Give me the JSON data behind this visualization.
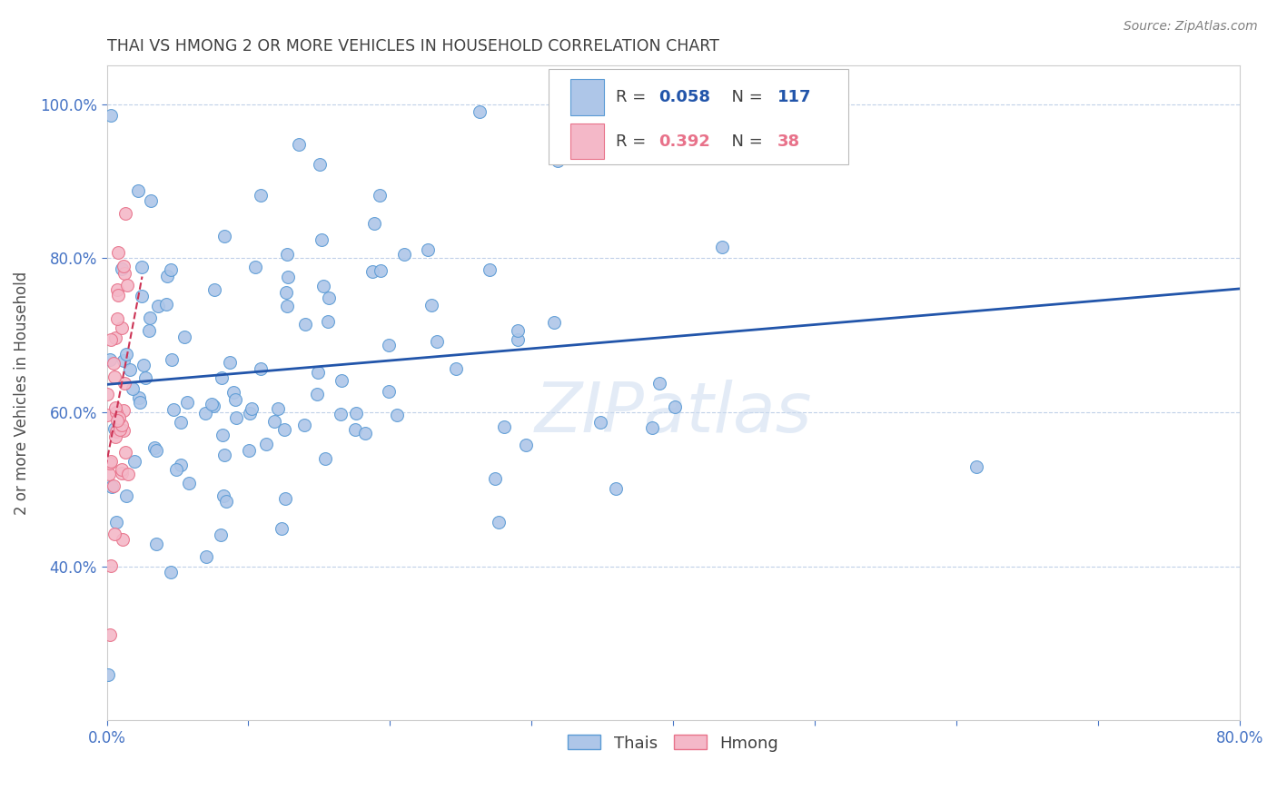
{
  "title": "THAI VS HMONG 2 OR MORE VEHICLES IN HOUSEHOLD CORRELATION CHART",
  "source": "Source: ZipAtlas.com",
  "ylabel": "2 or more Vehicles in Household",
  "watermark": "ZIPatlas",
  "xlim": [
    0.0,
    0.8
  ],
  "ylim": [
    0.2,
    1.05
  ],
  "xtick_vals": [
    0.0,
    0.1,
    0.2,
    0.3,
    0.4,
    0.5,
    0.6,
    0.7,
    0.8
  ],
  "xtick_labels": [
    "0.0%",
    "",
    "",
    "",
    "",
    "",
    "",
    "",
    "80.0%"
  ],
  "ytick_vals": [
    0.4,
    0.6,
    0.8,
    1.0
  ],
  "ytick_labels": [
    "40.0%",
    "60.0%",
    "80.0%",
    "100.0%"
  ],
  "thai_color": "#aec6e8",
  "thai_edge": "#5b9bd5",
  "hmong_color": "#f4b8c8",
  "hmong_edge": "#e8728a",
  "thai_line_color": "#2255aa",
  "hmong_line_color": "#cc3355",
  "axis_color": "#4472c4",
  "grid_color": "#c0d0e8",
  "title_color": "#404040",
  "source_color": "#808080",
  "thai_R": 0.058,
  "thai_N": 117,
  "hmong_R": 0.392,
  "hmong_N": 38,
  "background_color": "#ffffff",
  "figsize": [
    14.06,
    8.92
  ],
  "dpi": 100
}
